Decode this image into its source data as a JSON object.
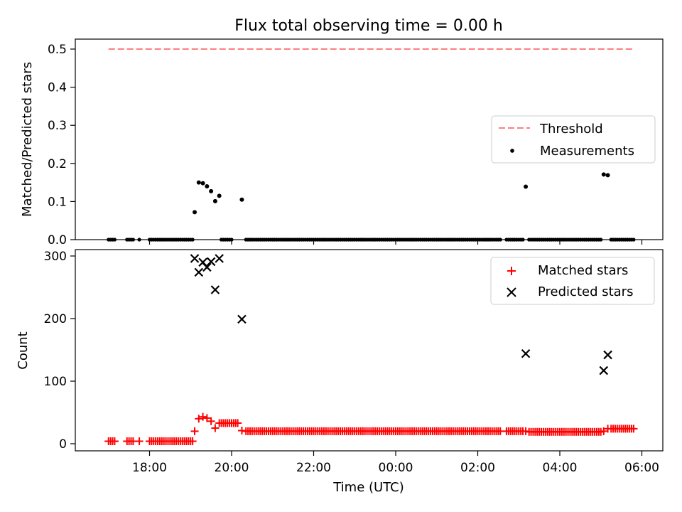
{
  "title": "Flux total observing time = 0.00 h",
  "colors": {
    "threshold": "#ff7f7f",
    "measurements": "#000000",
    "matched": "#ff0000",
    "predicted": "#000000",
    "legend_border": "#cccccc"
  },
  "chart_data": [
    {
      "type": "scatter",
      "panel": "top",
      "title": "Flux total observing time = 0.00 h",
      "xlabel": "",
      "ylabel": "Matched/Predicted stars",
      "x_unit": "hours since 00:00 UTC (negative = previous evening)",
      "xlim": [
        -7.3,
        6.5
      ],
      "ylim": [
        0,
        0.53
      ],
      "yticks": [
        0.0,
        0.1,
        0.2,
        0.3,
        0.4,
        0.5
      ],
      "ytick_labels": [
        "0.0",
        "0.1",
        "0.2",
        "0.3",
        "0.4",
        "0.5"
      ],
      "xticks": [
        -6,
        -4,
        -2,
        0,
        2,
        4,
        6
      ],
      "show_xtick_labels": false,
      "grid": false,
      "legend": {
        "position": "center-right",
        "entries": [
          "Threshold",
          "Measurements"
        ]
      },
      "series": [
        {
          "name": "Threshold",
          "kind": "dashed-line",
          "x": [
            -7.0,
            5.83
          ],
          "y": [
            0.5,
            0.5
          ]
        },
        {
          "name": "Measurements",
          "kind": "dots",
          "zero_runs": [
            [
              -7.0,
              -6.95,
              -6.9,
              -6.85
            ],
            [
              -6.55,
              -6.5,
              -6.45,
              -6.4
            ],
            [
              -6.25
            ],
            [
              -6.0,
              -5.95,
              -5.9,
              -5.85,
              -5.8,
              -5.75,
              -5.7,
              -5.65,
              -5.6,
              -5.55,
              -5.5,
              -5.45,
              -5.4,
              -5.35,
              -5.3,
              -5.25,
              -5.2,
              -5.15,
              -5.1,
              -5.05,
              -5.0,
              -4.95
            ],
            [
              -4.25,
              -4.2,
              -4.15,
              -4.1,
              -4.05,
              -4.0
            ],
            [
              -3.65,
              -3.6,
              -3.55,
              -3.5,
              -3.45,
              -3.4,
              -3.35,
              -3.3,
              -3.25,
              -3.2,
              -3.15,
              -3.1,
              -3.05,
              -3.0,
              -2.95,
              -2.9,
              -2.85,
              -2.8,
              -2.75,
              -2.7,
              -2.65,
              -2.6,
              -2.55,
              -2.5,
              -2.45,
              -2.4,
              -2.35,
              -2.3,
              -2.25,
              -2.2,
              -2.15,
              -2.1,
              -2.05,
              -2.0,
              -1.95,
              -1.9,
              -1.85,
              -1.8,
              -1.75,
              -1.7,
              -1.65,
              -1.6,
              -1.55,
              -1.5,
              -1.45,
              -1.4,
              -1.35,
              -1.3,
              -1.25,
              -1.2,
              -1.15,
              -1.1,
              -1.05,
              -1.0,
              -0.95,
              -0.9,
              -0.85,
              -0.8,
              -0.75,
              -0.7,
              -0.65,
              -0.6,
              -0.55,
              -0.5,
              -0.45,
              -0.4,
              -0.35,
              -0.3,
              -0.25,
              -0.2,
              -0.15,
              -0.1,
              -0.05,
              0.0,
              0.05,
              0.1,
              0.15,
              0.2,
              0.25,
              0.3,
              0.35,
              0.4,
              0.45,
              0.5,
              0.55,
              0.6,
              0.65,
              0.7,
              0.75,
              0.8,
              0.85,
              0.9,
              0.95,
              1.0,
              1.05,
              1.1,
              1.15,
              1.2,
              1.25,
              1.3,
              1.35,
              1.4,
              1.45,
              1.5,
              1.55,
              1.6,
              1.65,
              1.7,
              1.75,
              1.8,
              1.85,
              1.9,
              1.95,
              2.0,
              2.05,
              2.1,
              2.15,
              2.2,
              2.25,
              2.3,
              2.35,
              2.4,
              2.45,
              2.5,
              2.55
            ],
            [
              2.7,
              2.75,
              2.8,
              2.85,
              2.9,
              2.95,
              3.0,
              3.05,
              3.1
            ],
            [
              3.25,
              3.3,
              3.35,
              3.4,
              3.45,
              3.5,
              3.55,
              3.6,
              3.65,
              3.7,
              3.75,
              3.8,
              3.85,
              3.9,
              3.95,
              4.0,
              4.05,
              4.1,
              4.15,
              4.2,
              4.25,
              4.3,
              4.35,
              4.4,
              4.45,
              4.5,
              4.55,
              4.6,
              4.65,
              4.7,
              4.75,
              4.8,
              4.85,
              4.9,
              4.95,
              5.0
            ],
            [
              5.25,
              5.3,
              5.35,
              5.4,
              5.45,
              5.5,
              5.55,
              5.6,
              5.65,
              5.7,
              5.75,
              5.8
            ]
          ],
          "points": [
            {
              "x": -4.9,
              "y": 0.072
            },
            {
              "x": -4.8,
              "y": 0.15
            },
            {
              "x": -4.7,
              "y": 0.148
            },
            {
              "x": -4.6,
              "y": 0.14
            },
            {
              "x": -4.5,
              "y": 0.127
            },
            {
              "x": -4.4,
              "y": 0.101
            },
            {
              "x": -4.3,
              "y": 0.115
            },
            {
              "x": -3.75,
              "y": 0.105
            },
            {
              "x": 3.17,
              "y": 0.139
            },
            {
              "x": 5.07,
              "y": 0.171
            },
            {
              "x": 5.17,
              "y": 0.169
            }
          ]
        }
      ]
    },
    {
      "type": "scatter",
      "panel": "bottom",
      "title": "",
      "xlabel": "Time (UTC)",
      "ylabel": "Count",
      "x_unit": "hours since 00:00 UTC (negative = previous evening)",
      "xlim": [
        -7.3,
        6.5
      ],
      "ylim": [
        -10,
        310
      ],
      "yticks": [
        0,
        100,
        200,
        300
      ],
      "ytick_labels": [
        "0",
        "100",
        "200",
        "300"
      ],
      "xticks": [
        -6,
        -4,
        -2,
        0,
        2,
        4,
        6
      ],
      "xtick_labels": [
        "18:00",
        "20:00",
        "22:00",
        "00:00",
        "02:00",
        "04:00",
        "06:00"
      ],
      "grid": false,
      "legend": {
        "position": "top-right",
        "entries": [
          "Matched stars",
          "Predicted stars"
        ]
      },
      "series": [
        {
          "name": "Matched stars",
          "marker": "+",
          "runs": [
            {
              "x": [
                -7.0,
                -6.95,
                -6.9,
                -6.85
              ],
              "y": 4
            },
            {
              "x": [
                -6.55,
                -6.5,
                -6.45,
                -6.4
              ],
              "y": 4
            },
            {
              "x": [
                -6.25
              ],
              "y": 4
            },
            {
              "x": [
                -6.0,
                -5.95,
                -5.9,
                -5.85,
                -5.8,
                -5.75,
                -5.7,
                -5.65,
                -5.6,
                -5.55,
                -5.5,
                -5.45,
                -5.4,
                -5.35,
                -5.3,
                -5.25,
                -5.2,
                -5.15,
                -5.1,
                -5.05,
                -5.0,
                -4.95
              ],
              "y": 4
            },
            {
              "x": [
                -4.25,
                -4.2,
                -4.15,
                -4.1,
                -4.05,
                -4.0,
                -3.95,
                -3.9,
                -3.85
              ],
              "y": 33
            },
            {
              "x": [
                -3.65,
                -3.6,
                -3.55,
                -3.5,
                -3.45,
                -3.4,
                -3.35,
                -3.3,
                -3.25,
                -3.2,
                -3.15,
                -3.1,
                -3.05,
                -3.0,
                -2.95,
                -2.9,
                -2.85,
                -2.8,
                -2.75,
                -2.7,
                -2.65,
                -2.6,
                -2.55,
                -2.5,
                -2.45,
                -2.4,
                -2.35,
                -2.3,
                -2.25,
                -2.2,
                -2.15,
                -2.1,
                -2.05,
                -2.0,
                -1.95,
                -1.9,
                -1.85,
                -1.8,
                -1.75,
                -1.7,
                -1.65,
                -1.6,
                -1.55,
                -1.5,
                -1.45,
                -1.4,
                -1.35,
                -1.3,
                -1.25,
                -1.2,
                -1.15,
                -1.1,
                -1.05,
                -1.0,
                -0.95,
                -0.9,
                -0.85,
                -0.8,
                -0.75,
                -0.7,
                -0.65,
                -0.6,
                -0.55,
                -0.5,
                -0.45,
                -0.4,
                -0.35,
                -0.3,
                -0.25,
                -0.2,
                -0.15,
                -0.1,
                -0.05,
                0.0,
                0.05,
                0.1,
                0.15,
                0.2,
                0.25,
                0.3,
                0.35,
                0.4,
                0.45,
                0.5,
                0.55,
                0.6,
                0.65,
                0.7,
                0.75,
                0.8,
                0.85,
                0.9,
                0.95,
                1.0,
                1.05,
                1.1,
                1.15,
                1.2,
                1.25,
                1.3,
                1.35,
                1.4,
                1.45,
                1.5,
                1.55,
                1.6,
                1.65,
                1.7,
                1.75,
                1.8,
                1.85,
                1.9,
                1.95,
                2.0,
                2.05,
                2.1,
                2.15,
                2.2,
                2.25,
                2.3,
                2.35,
                2.4,
                2.45,
                2.5,
                2.55
              ],
              "y": 20
            },
            {
              "x": [
                2.7,
                2.75,
                2.8,
                2.85,
                2.9,
                2.95,
                3.0,
                3.05,
                3.1
              ],
              "y": 20
            },
            {
              "x": [
                3.25,
                3.3,
                3.35,
                3.4,
                3.45,
                3.5,
                3.55,
                3.6,
                3.65,
                3.7,
                3.75,
                3.8,
                3.85,
                3.9,
                3.95,
                4.0,
                4.05,
                4.1,
                4.15,
                4.2,
                4.25,
                4.3,
                4.35,
                4.4,
                4.45,
                4.5,
                4.55,
                4.6,
                4.65,
                4.7,
                4.75,
                4.8,
                4.85,
                4.9,
                4.95,
                5.0
              ],
              "y": 19
            },
            {
              "x": [
                5.25,
                5.3,
                5.35,
                5.4,
                5.45,
                5.5,
                5.55,
                5.6,
                5.65,
                5.7,
                5.75,
                5.8
              ],
              "y": 24
            }
          ],
          "points": [
            {
              "x": -4.9,
              "y": 20
            },
            {
              "x": -4.8,
              "y": 40
            },
            {
              "x": -4.7,
              "y": 43
            },
            {
              "x": -4.6,
              "y": 41
            },
            {
              "x": -4.5,
              "y": 36
            },
            {
              "x": -4.4,
              "y": 25
            },
            {
              "x": -4.3,
              "y": 33
            },
            {
              "x": -3.75,
              "y": 21
            },
            {
              "x": 3.17,
              "y": 20
            },
            {
              "x": 5.07,
              "y": 20
            },
            {
              "x": 5.17,
              "y": 24
            }
          ]
        },
        {
          "name": "Predicted stars",
          "marker": "x",
          "points": [
            {
              "x": -4.9,
              "y": 296
            },
            {
              "x": -4.8,
              "y": 274
            },
            {
              "x": -4.7,
              "y": 290
            },
            {
              "x": -4.6,
              "y": 282
            },
            {
              "x": -4.5,
              "y": 291
            },
            {
              "x": -4.4,
              "y": 246
            },
            {
              "x": -4.3,
              "y": 296
            },
            {
              "x": -3.75,
              "y": 199
            },
            {
              "x": 3.17,
              "y": 144
            },
            {
              "x": 5.07,
              "y": 117
            },
            {
              "x": 5.17,
              "y": 142
            }
          ]
        }
      ]
    }
  ]
}
